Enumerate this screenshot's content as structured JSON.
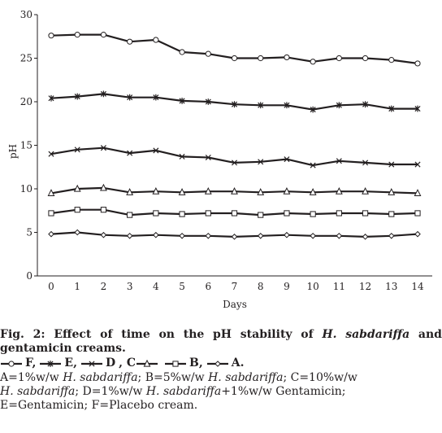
{
  "chart_data": {
    "type": "line",
    "title": "",
    "xlabel": "Days",
    "ylabel": "pH",
    "x": [
      0,
      1,
      2,
      3,
      4,
      5,
      6,
      7,
      8,
      9,
      10,
      11,
      12,
      13,
      14
    ],
    "ylim": [
      0,
      30
    ],
    "yticks": [
      0,
      5,
      10,
      15,
      20,
      25,
      30
    ],
    "grid": false,
    "series": [
      {
        "name": "F",
        "marker": "circle",
        "values": [
          27.6,
          27.7,
          27.7,
          26.9,
          27.1,
          25.7,
          25.5,
          25.0,
          25.0,
          25.1,
          24.6,
          25.0,
          25.0,
          24.8,
          24.4
        ]
      },
      {
        "name": "E",
        "marker": "star",
        "values": [
          20.4,
          20.6,
          20.9,
          20.5,
          20.5,
          20.1,
          20.0,
          19.7,
          19.6,
          19.6,
          19.1,
          19.6,
          19.7,
          19.2,
          19.2
        ]
      },
      {
        "name": "D",
        "marker": "x",
        "values": [
          14.0,
          14.5,
          14.7,
          14.1,
          14.4,
          13.7,
          13.6,
          13.0,
          13.1,
          13.4,
          12.7,
          13.2,
          13.0,
          12.8,
          12.8
        ]
      },
      {
        "name": "C",
        "marker": "triangle",
        "values": [
          9.5,
          10.0,
          10.1,
          9.6,
          9.7,
          9.6,
          9.7,
          9.7,
          9.6,
          9.7,
          9.6,
          9.7,
          9.7,
          9.6,
          9.5
        ]
      },
      {
        "name": "B",
        "marker": "square",
        "values": [
          7.2,
          7.6,
          7.6,
          7.0,
          7.2,
          7.1,
          7.2,
          7.2,
          7.0,
          7.2,
          7.1,
          7.2,
          7.2,
          7.1,
          7.2
        ]
      },
      {
        "name": "A",
        "marker": "diamond",
        "values": [
          4.8,
          5.0,
          4.7,
          4.6,
          4.7,
          4.6,
          4.6,
          4.5,
          4.6,
          4.7,
          4.6,
          4.6,
          4.5,
          4.6,
          4.8
        ]
      }
    ]
  },
  "caption": {
    "fig_label": "Fig. 2:",
    "title_pre": " Effect of time on the pH stability of ",
    "title_italic": "H. sabdariffa",
    "title_post": " and gentamicin creams.",
    "legend_items": [
      {
        "text": "F,"
      },
      {
        "text": "E,"
      },
      {
        "text": "D"
      },
      {
        "text": ", C"
      },
      {
        "text": "B,"
      },
      {
        "text": "A."
      }
    ],
    "defs_line1_a": "A=1%w/w ",
    "defs_line1_b": "H. sabdariffa",
    "defs_line1_c": "; B=5%w/w ",
    "defs_line1_d": "H. sabdariffa",
    "defs_line1_e": "; C=10%w/w",
    "defs_line2_a": "H. sabdariffa",
    "defs_line2_b": "; D=1%w/w ",
    "defs_line2_c": "H. sabdariffa",
    "defs_line2_d": "+1%w/w Gentamicin;",
    "defs_line3": "E=Gentamicin; F=Placebo cream."
  }
}
